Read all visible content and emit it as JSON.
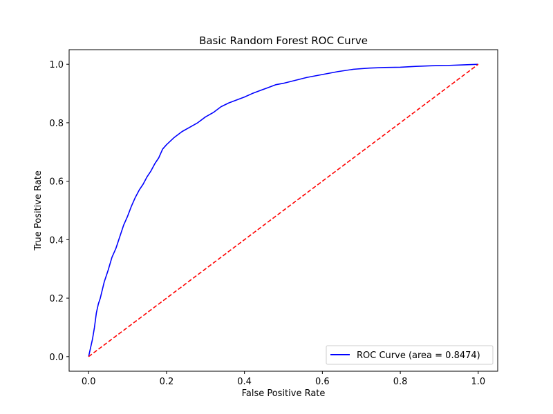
{
  "chart_data": {
    "type": "line",
    "title": "Basic Random Forest ROC Curve",
    "xlabel": "False Positive Rate",
    "ylabel": "True Positive Rate",
    "xlim": [
      -0.05,
      1.05
    ],
    "ylim": [
      -0.05,
      1.05
    ],
    "x_ticks": [
      0.0,
      0.2,
      0.4,
      0.6,
      0.8,
      1.0
    ],
    "y_ticks": [
      0.0,
      0.2,
      0.4,
      0.6,
      0.8,
      1.0
    ],
    "x_tick_labels": [
      "0.0",
      "0.2",
      "0.4",
      "0.6",
      "0.8",
      "1.0"
    ],
    "y_tick_labels": [
      "0.0",
      "0.2",
      "0.4",
      "0.6",
      "0.8",
      "1.0"
    ],
    "grid": false,
    "legend_position": "lower-right",
    "series": [
      {
        "name": "ROC Curve (area = 0.8474)",
        "color": "#0000ff",
        "style": "solid",
        "x": [
          0.0,
          0.005,
          0.01,
          0.015,
          0.02,
          0.025,
          0.03,
          0.04,
          0.05,
          0.06,
          0.07,
          0.08,
          0.09,
          0.1,
          0.11,
          0.12,
          0.13,
          0.14,
          0.15,
          0.16,
          0.17,
          0.18,
          0.19,
          0.2,
          0.22,
          0.24,
          0.26,
          0.28,
          0.3,
          0.32,
          0.34,
          0.36,
          0.38,
          0.4,
          0.42,
          0.44,
          0.46,
          0.48,
          0.5,
          0.53,
          0.56,
          0.6,
          0.64,
          0.68,
          0.72,
          0.76,
          0.8,
          0.84,
          0.88,
          0.92,
          0.96,
          1.0
        ],
        "y": [
          0.0,
          0.03,
          0.06,
          0.1,
          0.15,
          0.18,
          0.2,
          0.255,
          0.295,
          0.34,
          0.37,
          0.41,
          0.45,
          0.48,
          0.515,
          0.545,
          0.57,
          0.59,
          0.615,
          0.635,
          0.66,
          0.68,
          0.71,
          0.725,
          0.75,
          0.77,
          0.785,
          0.8,
          0.82,
          0.835,
          0.855,
          0.868,
          0.878,
          0.888,
          0.9,
          0.91,
          0.92,
          0.93,
          0.935,
          0.945,
          0.955,
          0.965,
          0.975,
          0.983,
          0.987,
          0.989,
          0.99,
          0.993,
          0.995,
          0.996,
          0.998,
          1.0
        ]
      },
      {
        "name": "",
        "color": "#ff0000",
        "style": "dashed",
        "x": [
          0.0,
          1.0
        ],
        "y": [
          0.0,
          1.0
        ]
      }
    ]
  }
}
